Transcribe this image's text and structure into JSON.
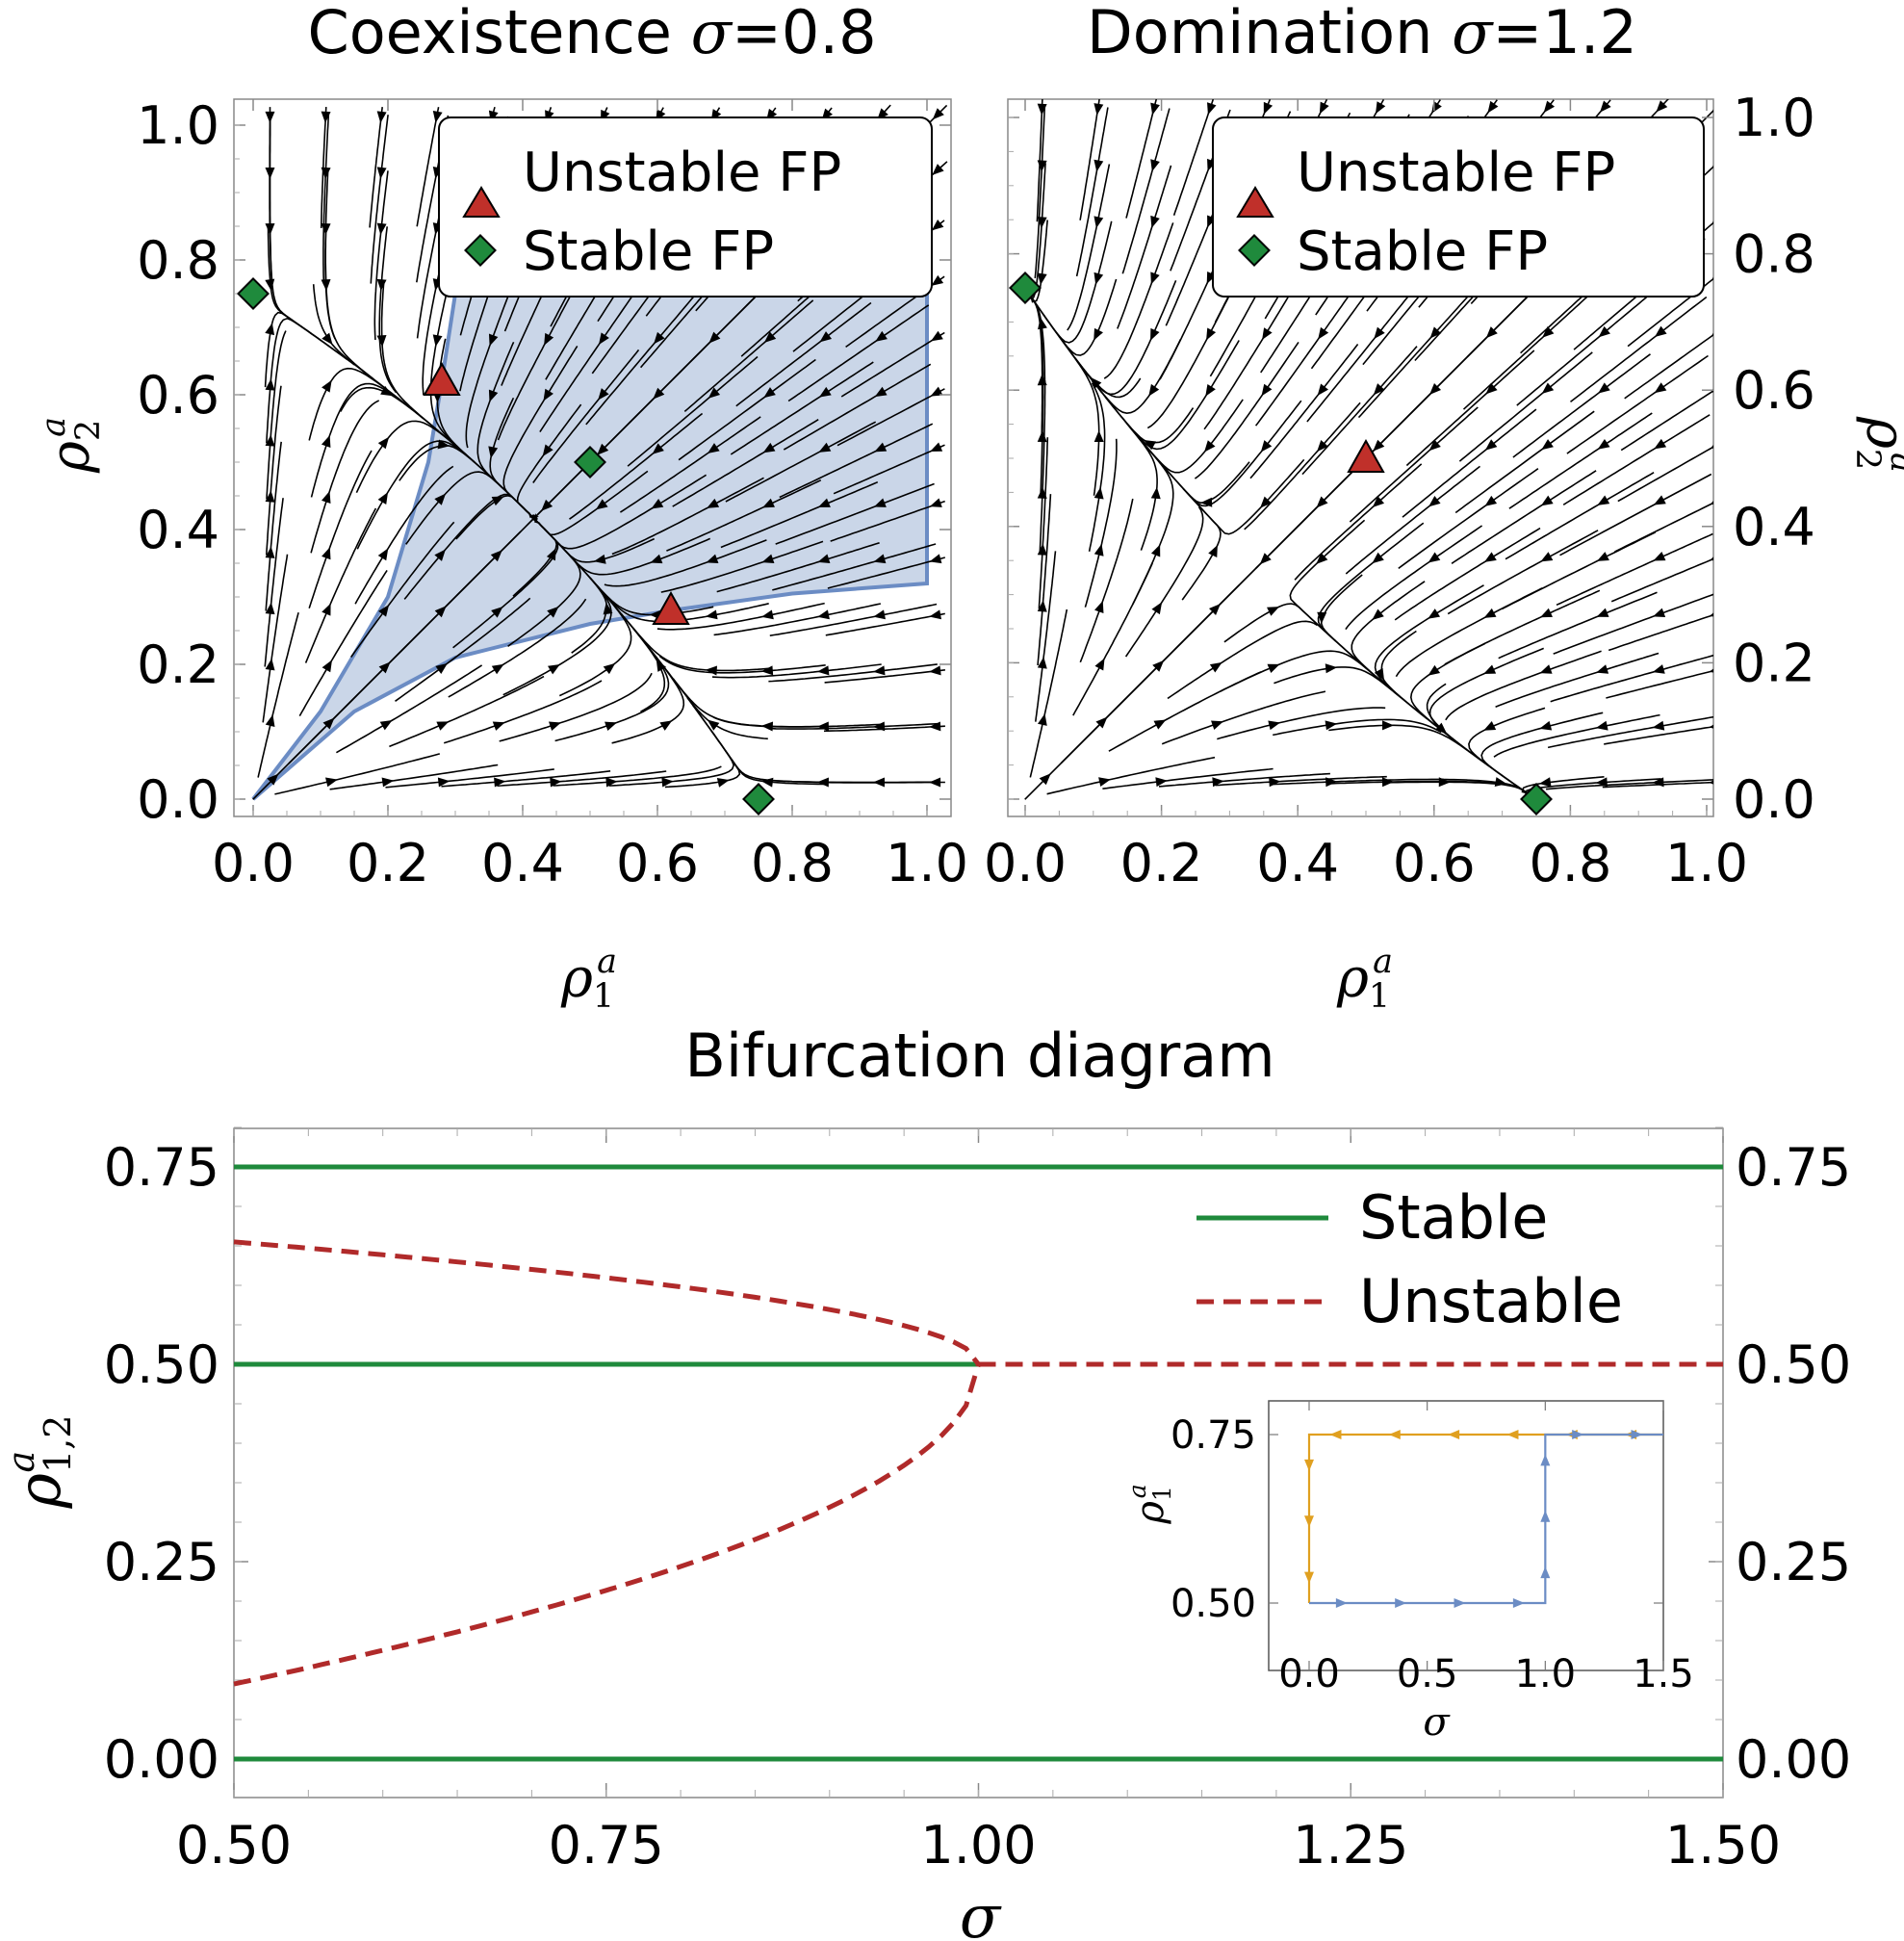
{
  "chart_data": [
    {
      "type": "streamplot",
      "title": "Coexistence σ=0.8",
      "xlabel": "ρ1a",
      "ylabel": "ρ2a",
      "sigma": 0.8,
      "xlim": [
        0,
        1
      ],
      "ylim": [
        0,
        1
      ],
      "xticks": [
        "0.0",
        "0.2",
        "0.4",
        "0.6",
        "0.8",
        "1.0"
      ],
      "yticks": [
        "0.0",
        "0.2",
        "0.4",
        "0.6",
        "0.8",
        "1.0"
      ],
      "legend": [
        "Unstable FP",
        "Stable FP"
      ],
      "legend_position": "top-right",
      "unstable_fp": [
        [
          0.28,
          0.62
        ],
        [
          0.62,
          0.28
        ]
      ],
      "stable_fp": [
        [
          0.0,
          0.75
        ],
        [
          0.5,
          0.5
        ],
        [
          0.75,
          0.0
        ]
      ],
      "basin_boundary": {
        "upper": [
          [
            0.0,
            0.0
          ],
          [
            0.1,
            0.13
          ],
          [
            0.2,
            0.3
          ],
          [
            0.26,
            0.5
          ],
          [
            0.28,
            0.62
          ],
          [
            0.3,
            0.75
          ]
        ],
        "lower": [
          [
            0.0,
            0.0
          ],
          [
            0.15,
            0.13
          ],
          [
            0.3,
            0.21
          ],
          [
            0.5,
            0.26
          ],
          [
            0.62,
            0.28
          ],
          [
            0.8,
            0.305
          ],
          [
            1.0,
            0.32
          ]
        ],
        "top": 0.75,
        "right": 1.0,
        "color": "#6b8cc4",
        "fill": "#cad6e8"
      }
    },
    {
      "type": "streamplot",
      "title": "Domination σ=1.2",
      "xlabel": "ρ1a",
      "ylabel": "ρ2a",
      "sigma": 1.2,
      "xlim": [
        0,
        1
      ],
      "ylim": [
        0,
        1
      ],
      "xticks": [
        "0.0",
        "0.2",
        "0.4",
        "0.6",
        "0.8",
        "1.0"
      ],
      "yticks": [
        "0.0",
        "0.2",
        "0.4",
        "0.6",
        "0.8",
        "1.0"
      ],
      "legend": [
        "Unstable FP",
        "Stable FP"
      ],
      "legend_position": "top-right",
      "unstable_fp": [
        [
          0.5,
          0.5
        ]
      ],
      "stable_fp": [
        [
          0.0,
          0.75
        ],
        [
          0.75,
          0.0
        ]
      ]
    },
    {
      "type": "line",
      "title": "Bifurcation diagram",
      "xlabel": "σ",
      "ylabel": "ρ1,2a",
      "xlim": [
        0.5,
        1.5
      ],
      "ylim": [
        -0.05,
        0.8
      ],
      "xticks": [
        "0.50",
        "0.75",
        "1.00",
        "1.25",
        "1.50"
      ],
      "yticks": [
        "0.00",
        "0.25",
        "0.50",
        "0.75"
      ],
      "legend_position": "top-right",
      "series": [
        {
          "name": "Stable",
          "style": "solid",
          "color": "#1f8a3c",
          "segments": [
            {
              "x": [
                0.5,
                1.5
              ],
              "y": [
                0.75,
                0.75
              ]
            },
            {
              "x": [
                0.5,
                1.0
              ],
              "y": [
                0.5,
                0.5
              ]
            },
            {
              "x": [
                0.5,
                1.5
              ],
              "y": [
                0.0,
                0.0
              ]
            }
          ]
        },
        {
          "name": "Unstable",
          "style": "dashed",
          "color": "#b02a2a",
          "segments": [
            {
              "x": [
                0.5,
                0.6,
                0.7,
                0.8,
                0.9,
                0.95,
                0.98,
                1.0
              ],
              "y": [
                0.655,
                0.645,
                0.627,
                0.6,
                0.563,
                0.537,
                0.516,
                0.5
              ]
            },
            {
              "x": [
                0.5,
                0.6,
                0.7,
                0.8,
                0.9,
                0.95,
                0.98,
                1.0
              ],
              "y": [
                0.095,
                0.148,
                0.2,
                0.27,
                0.36,
                0.42,
                0.463,
                0.5
              ]
            },
            {
              "x": [
                1.0,
                1.5
              ],
              "y": [
                0.5,
                0.5
              ]
            }
          ]
        }
      ]
    },
    {
      "type": "line",
      "title": "",
      "xlabel": "σ",
      "ylabel": "ρ1a",
      "xlim": [
        -0.08,
        1.5
      ],
      "ylim": [
        0.45,
        0.78
      ],
      "xticks": [
        "0.0",
        "0.5",
        "1.0",
        "1.5"
      ],
      "yticks": [
        "0.50",
        "0.75"
      ],
      "series": [
        {
          "color": "#e0a020",
          "path": [
            [
              1.5,
              0.75
            ],
            [
              0.0,
              0.75
            ],
            [
              0.0,
              0.5
            ]
          ]
        },
        {
          "color": "#6b8cc4",
          "path": [
            [
              0.0,
              0.5
            ],
            [
              1.0,
              0.5
            ],
            [
              1.0,
              0.75
            ],
            [
              1.5,
              0.75
            ]
          ]
        }
      ]
    }
  ]
}
